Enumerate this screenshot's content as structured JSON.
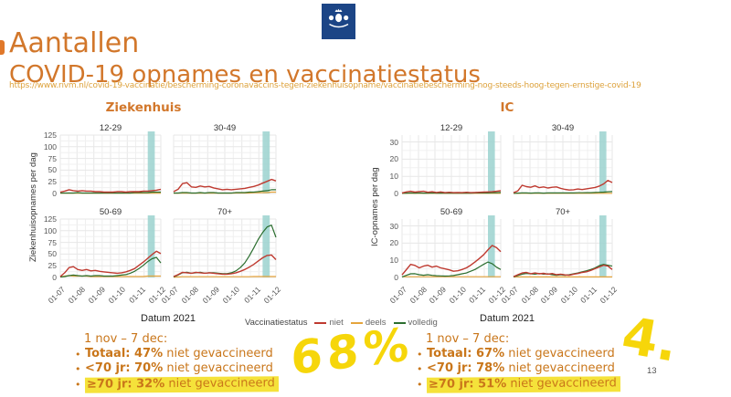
{
  "header": {
    "title_line1": "Aantallen",
    "title_line2": "COVID-19 opnames en vaccinatiestatus",
    "url": "https://www.rivm.nl/covid-19-vaccinatie/bescherming-coronavaccins-tegen-ziekenhuisopname/vaccinatiebescherming-nog-steeds-hoog-tegen-ernstige-covid-19"
  },
  "groups": {
    "left_title": "Ziekenhuis",
    "right_title": "IC",
    "left_ylabel": "Ziekenhuisopnames per dag",
    "right_ylabel": "IC-opnames per dag",
    "xlabel": "Datum 2021"
  },
  "legend": {
    "label": "Vaccinatiestatus",
    "items": [
      {
        "name": "niet",
        "color": "#bf3a30"
      },
      {
        "name": "deels",
        "color": "#e5a43c"
      },
      {
        "name": "volledig",
        "color": "#2b6e2f"
      }
    ]
  },
  "colors": {
    "accent_orange": "#d2772b",
    "url_orange": "#dda23c",
    "note_orange": "#c9761a",
    "band_teal": "#9bd2cf",
    "highlight_yellow": "#f5e23a",
    "marker_yellow": "#f6d60a",
    "logo_blue": "#1c4586"
  },
  "chart_data": [
    {
      "id": "zk-12-29",
      "type": "line",
      "group": "Ziekenhuis",
      "title": "12-29",
      "ylim": [
        0,
        125
      ],
      "yticks": [
        0,
        25,
        50,
        75,
        100,
        125
      ],
      "x_ticks": [
        "01-07",
        "01-08",
        "01-09",
        "01-10",
        "01-11",
        "01-12"
      ],
      "show_yticks": true,
      "show_xticks": false,
      "band": [
        0.87,
        0.94
      ],
      "series": [
        {
          "name": "niet",
          "values": [
            3,
            5,
            8,
            6,
            5,
            6,
            5,
            5,
            4,
            4,
            3,
            3,
            3,
            4,
            4,
            3,
            4,
            4,
            4,
            5,
            5,
            6,
            7,
            9
          ]
        },
        {
          "name": "deels",
          "values": [
            0.5,
            0.5,
            0.5,
            0.5,
            0.5,
            0.5,
            0.5,
            0.5,
            0.5,
            0.5,
            0.5,
            0.5,
            0.5,
            0.5,
            0.5,
            0.5,
            0.5,
            0.5,
            0.5,
            0.5,
            0.5,
            0.5,
            0.5,
            0.5
          ]
        },
        {
          "name": "volledig",
          "values": [
            1,
            1,
            1,
            1,
            2,
            1,
            1,
            1,
            1,
            1,
            1,
            1,
            1,
            1,
            1,
            1,
            1,
            2,
            2,
            2,
            2,
            3,
            3,
            3
          ]
        }
      ]
    },
    {
      "id": "zk-30-49",
      "type": "line",
      "group": "Ziekenhuis",
      "title": "30-49",
      "ylim": [
        0,
        125
      ],
      "yticks": [
        0,
        25,
        50,
        75,
        100,
        125
      ],
      "x_ticks": [
        "01-07",
        "01-08",
        "01-09",
        "01-10",
        "01-11",
        "01-12"
      ],
      "show_yticks": false,
      "show_xticks": false,
      "band": [
        0.87,
        0.94
      ],
      "series": [
        {
          "name": "niet",
          "values": [
            4,
            9,
            21,
            23,
            14,
            13,
            16,
            14,
            15,
            12,
            10,
            8,
            9,
            8,
            9,
            10,
            11,
            13,
            15,
            18,
            22,
            26,
            30,
            27
          ]
        },
        {
          "name": "deels",
          "values": [
            0.5,
            0.5,
            0.5,
            0.5,
            0.5,
            0.5,
            0.5,
            0.5,
            0.5,
            0.5,
            0.5,
            0.5,
            0.5,
            0.5,
            1,
            1,
            1,
            1,
            1.5,
            1.5,
            2,
            2,
            3,
            3
          ]
        },
        {
          "name": "volledig",
          "values": [
            1,
            1,
            2,
            2,
            1,
            1,
            2,
            1,
            2,
            2,
            1,
            1,
            1,
            1,
            2,
            2,
            2,
            3,
            3,
            4,
            5,
            6,
            8,
            8
          ]
        }
      ]
    },
    {
      "id": "zk-50-69",
      "type": "line",
      "group": "Ziekenhuis",
      "title": "50-69",
      "ylim": [
        0,
        125
      ],
      "yticks": [
        0,
        25,
        50,
        75,
        100,
        125
      ],
      "x_ticks": [
        "01-07",
        "01-08",
        "01-09",
        "01-10",
        "01-11",
        "01-12"
      ],
      "show_yticks": true,
      "show_xticks": true,
      "band": [
        0.87,
        0.94
      ],
      "series": [
        {
          "name": "niet",
          "values": [
            2,
            10,
            21,
            23,
            17,
            15,
            17,
            14,
            15,
            13,
            12,
            11,
            10,
            9,
            10,
            12,
            15,
            19,
            26,
            33,
            41,
            49,
            56,
            51
          ]
        },
        {
          "name": "deels",
          "values": [
            1,
            3,
            4,
            3,
            3,
            3,
            3,
            2,
            2,
            2,
            2,
            2,
            2,
            2,
            2,
            2,
            2,
            2,
            2,
            2,
            3,
            3,
            3,
            3
          ]
        },
        {
          "name": "volledig",
          "values": [
            1,
            2,
            4,
            5,
            4,
            3,
            4,
            3,
            4,
            4,
            3,
            3,
            3,
            4,
            5,
            6,
            9,
            13,
            19,
            26,
            34,
            40,
            43,
            31
          ]
        }
      ]
    },
    {
      "id": "zk-70plus",
      "type": "line",
      "group": "Ziekenhuis",
      "title": "70+",
      "ylim": [
        0,
        125
      ],
      "yticks": [
        0,
        25,
        50,
        75,
        100,
        125
      ],
      "x_ticks": [
        "01-07",
        "01-08",
        "01-09",
        "01-10",
        "01-11",
        "01-12"
      ],
      "show_yticks": false,
      "show_xticks": true,
      "band": [
        0.87,
        0.94
      ],
      "series": [
        {
          "name": "niet",
          "values": [
            2,
            6,
            11,
            10,
            9,
            11,
            10,
            9,
            10,
            9,
            8,
            7,
            7,
            8,
            10,
            13,
            17,
            22,
            28,
            35,
            42,
            47,
            48,
            38
          ]
        },
        {
          "name": "deels",
          "values": [
            0.5,
            1,
            1.5,
            1.5,
            1.5,
            1.5,
            1.5,
            1.5,
            1.5,
            1.5,
            1.5,
            1.5,
            1.5,
            1.5,
            1.5,
            1.5,
            1.5,
            1.5,
            2,
            2,
            2,
            2,
            2,
            2
          ]
        },
        {
          "name": "volledig",
          "values": [
            1,
            5,
            10,
            11,
            9,
            10,
            11,
            9,
            10,
            10,
            9,
            8,
            8,
            10,
            14,
            21,
            31,
            46,
            63,
            81,
            96,
            108,
            112,
            86
          ]
        }
      ]
    },
    {
      "id": "ic-12-29",
      "type": "line",
      "group": "IC",
      "title": "12-29",
      "ylim": [
        0,
        34
      ],
      "yticks": [
        0,
        10,
        20,
        30
      ],
      "x_ticks": [
        "01-07",
        "01-08",
        "01-09",
        "01-10",
        "01-11",
        "01-12"
      ],
      "show_yticks": true,
      "show_xticks": false,
      "band": [
        0.87,
        0.94
      ],
      "series": [
        {
          "name": "niet",
          "values": [
            0.3,
            0.9,
            1.3,
            0.8,
            1.1,
            1.3,
            0.7,
            1.0,
            0.6,
            0.9,
            0.5,
            0.7,
            0.5,
            0.6,
            0.5,
            0.7,
            0.5,
            0.6,
            0.7,
            0.8,
            0.9,
            1.0,
            1.3,
            1.6
          ]
        },
        {
          "name": "deels",
          "values": [
            0.1,
            0.1,
            0.1,
            0.1,
            0.1,
            0.1,
            0.1,
            0.1,
            0.1,
            0.1,
            0.1,
            0.1,
            0.1,
            0.1,
            0.1,
            0.1,
            0.1,
            0.1,
            0.1,
            0.1,
            0.1,
            0.1,
            0.1,
            0.1
          ]
        },
        {
          "name": "volledig",
          "values": [
            0.1,
            0.2,
            0.3,
            0.2,
            0.3,
            0.2,
            0.2,
            0.3,
            0.2,
            0.2,
            0.2,
            0.2,
            0.2,
            0.2,
            0.2,
            0.2,
            0.2,
            0.3,
            0.3,
            0.3,
            0.3,
            0.4,
            0.5,
            0.6
          ]
        }
      ]
    },
    {
      "id": "ic-30-49",
      "type": "line",
      "group": "IC",
      "title": "30-49",
      "ylim": [
        0,
        34
      ],
      "yticks": [
        0,
        10,
        20,
        30
      ],
      "x_ticks": [
        "01-07",
        "01-08",
        "01-09",
        "01-10",
        "01-11",
        "01-12"
      ],
      "show_yticks": false,
      "show_xticks": false,
      "band": [
        0.87,
        0.94
      ],
      "series": [
        {
          "name": "niet",
          "values": [
            0.5,
            1.5,
            4.8,
            4.0,
            3.6,
            4.4,
            3.4,
            3.8,
            3.2,
            3.6,
            3.8,
            3.0,
            2.4,
            2.0,
            2.2,
            2.6,
            2.3,
            2.7,
            3.1,
            3.5,
            4.3,
            5.6,
            7.6,
            6.4
          ]
        },
        {
          "name": "deels",
          "values": [
            0.1,
            0.1,
            0.1,
            0.1,
            0.1,
            0.1,
            0.1,
            0.1,
            0.1,
            0.1,
            0.1,
            0.1,
            0.1,
            0.1,
            0.1,
            0.1,
            0.1,
            0.1,
            0.1,
            0.1,
            0.1,
            0.1,
            0.1,
            0.1
          ]
        },
        {
          "name": "volledig",
          "values": [
            0.1,
            0.2,
            0.3,
            0.3,
            0.2,
            0.3,
            0.3,
            0.2,
            0.3,
            0.3,
            0.3,
            0.3,
            0.3,
            0.3,
            0.3,
            0.4,
            0.4,
            0.5,
            0.5,
            0.6,
            0.7,
            0.8,
            1.0,
            1.1
          ]
        }
      ]
    },
    {
      "id": "ic-50-69",
      "type": "line",
      "group": "IC",
      "title": "50-69",
      "ylim": [
        0,
        34
      ],
      "yticks": [
        0,
        10,
        20,
        30
      ],
      "x_ticks": [
        "01-07",
        "01-08",
        "01-09",
        "01-10",
        "01-11",
        "01-12"
      ],
      "show_yticks": true,
      "show_xticks": true,
      "band": [
        0.87,
        0.94
      ],
      "series": [
        {
          "name": "niet",
          "values": [
            1.5,
            4.5,
            7.6,
            7.0,
            5.6,
            6.6,
            7.1,
            6.0,
            6.6,
            5.6,
            5.0,
            4.4,
            3.6,
            3.9,
            4.6,
            5.6,
            7.1,
            9.0,
            11,
            13.2,
            16,
            18.6,
            17.4,
            15
          ]
        },
        {
          "name": "deels",
          "values": [
            0.4,
            0.4,
            0.4,
            0.4,
            0.4,
            0.4,
            0.4,
            0.4,
            0.4,
            0.4,
            0.4,
            0.4,
            0.4,
            0.4,
            0.4,
            0.4,
            0.4,
            0.4,
            0.4,
            0.4,
            0.4,
            0.4,
            0.4,
            0.4
          ]
        },
        {
          "name": "volledig",
          "values": [
            0.3,
            1.2,
            2.1,
            2.2,
            1.6,
            1.3,
            1.6,
            1.2,
            1.0,
            0.9,
            0.8,
            0.9,
            1.1,
            1.6,
            2.1,
            2.6,
            3.6,
            4.6,
            6.1,
            7.6,
            9.0,
            8.0,
            6.0,
            4.6
          ]
        }
      ]
    },
    {
      "id": "ic-70plus",
      "type": "line",
      "group": "IC",
      "title": "70+",
      "ylim": [
        0,
        34
      ],
      "yticks": [
        0,
        10,
        20,
        30
      ],
      "x_ticks": [
        "01-07",
        "01-08",
        "01-09",
        "01-10",
        "01-11",
        "01-12"
      ],
      "show_yticks": false,
      "show_xticks": true,
      "band": [
        0.87,
        0.94
      ],
      "series": [
        {
          "name": "niet",
          "values": [
            0.5,
            1.6,
            2.6,
            2.9,
            2.2,
            2.6,
            2.1,
            2.4,
            1.9,
            2.3,
            1.6,
            1.9,
            1.5,
            1.3,
            1.9,
            2.3,
            2.9,
            3.3,
            4.1,
            5.1,
            6.1,
            7.1,
            6.6,
            4.6
          ]
        },
        {
          "name": "deels",
          "values": [
            0.3,
            0.3,
            0.3,
            0.3,
            0.3,
            0.3,
            0.3,
            0.3,
            0.3,
            0.3,
            0.3,
            0.3,
            0.3,
            0.3,
            0.3,
            0.3,
            0.3,
            0.3,
            0.3,
            0.3,
            0.3,
            0.3,
            0.3,
            0.3
          ]
        },
        {
          "name": "volledig",
          "values": [
            0.3,
            1.1,
            1.9,
            2.3,
            2.1,
            1.9,
            2.3,
            1.9,
            2.1,
            1.6,
            1.3,
            1.6,
            1.3,
            1.6,
            2.1,
            2.6,
            3.3,
            3.9,
            4.6,
            5.6,
            6.9,
            7.6,
            7.1,
            6.6
          ]
        }
      ]
    }
  ],
  "notes": {
    "bullet": "•",
    "left": {
      "period": "1 nov – 7 dec:",
      "items": [
        {
          "bold": "Totaal: 47%",
          "rest": " niet gevaccineerd"
        },
        {
          "bold": "<70 jr: 70%",
          "rest": " niet gevaccineerd"
        },
        {
          "bold": "≥70 jr: 32%",
          "rest": " niet gevaccineerd"
        }
      ]
    },
    "right": {
      "period": "1 nov – 7 dec:",
      "items": [
        {
          "bold": "Totaal: 67%",
          "rest": " niet gevaccineerd"
        },
        {
          "bold": "<70 jr: 78%",
          "rest": " niet gevaccineerd"
        },
        {
          "bold": "≥70 jr: 51%",
          "rest": " niet gevaccineerd"
        }
      ]
    }
  },
  "annotations": {
    "marker_mid": "68%",
    "marker_right": "4.",
    "page_number": "13"
  }
}
